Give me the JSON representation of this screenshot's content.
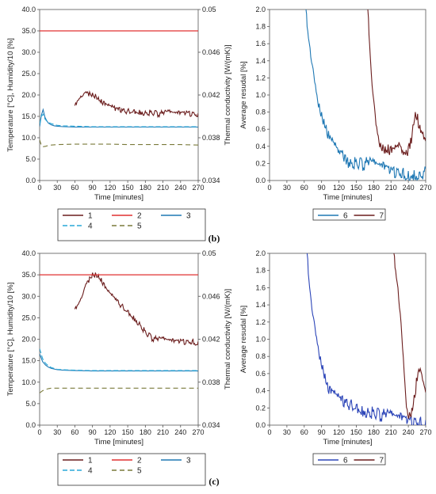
{
  "colors": {
    "s1": "#6b1d1d",
    "s2": "#e03030",
    "s3": "#1f78b4",
    "s4": "#29a8d8",
    "s5": "#7a7a3a",
    "s6_b": "#1f78b4",
    "s6_c": "#2c45b8",
    "s7": "#6b1d1d"
  },
  "panels": [
    {
      "label": "(b)"
    },
    {
      "label": "(c)"
    }
  ],
  "chart_data": [
    {
      "type": "line",
      "panel": "(b)",
      "xlabel": "Time [minutes]",
      "ylabel": "Temperature [°C], Humidity/10 [%]",
      "y2label": "Thermal conductivity [W/(mK)]",
      "xlim": [
        0,
        270
      ],
      "ylim": [
        0,
        40
      ],
      "y2lim": [
        0.034,
        0.05
      ],
      "xticks": [
        "0",
        "30",
        "60",
        "90",
        "120",
        "150",
        "180",
        "210",
        "240",
        "270"
      ],
      "yticks": [
        "0.0",
        "5.0",
        "10.0",
        "15.0",
        "20.0",
        "25.0",
        "30.0",
        "35.0",
        "40.0"
      ],
      "y2ticks": [
        "0.034",
        "0.038",
        "0.042",
        "0.046",
        "0.05"
      ],
      "legend": [
        "1",
        "2",
        "3",
        "4",
        "5"
      ],
      "series": [
        {
          "name": "1",
          "axis": "y2",
          "x": [
            60,
            65,
            70,
            75,
            80,
            85,
            90,
            95,
            100,
            105,
            110,
            115,
            120,
            130,
            140,
            150,
            160,
            170,
            180,
            190,
            200,
            210,
            220,
            230,
            240,
            250,
            260,
            270
          ],
          "values": [
            0.041,
            0.0415,
            0.0419,
            0.0421,
            0.0422,
            0.0423,
            0.0422,
            0.0421,
            0.0418,
            0.0416,
            0.0414,
            0.0411,
            0.041,
            0.0408,
            0.0407,
            0.0406,
            0.0406,
            0.0406,
            0.0405,
            0.0405,
            0.0404,
            0.0404,
            0.0405,
            0.0404,
            0.0404,
            0.0405,
            0.0404,
            0.0403
          ]
        },
        {
          "name": "2",
          "axis": "y",
          "x": [
            0,
            30,
            60,
            90,
            120,
            150,
            180,
            210,
            240,
            270
          ],
          "values": [
            35.0,
            35.0,
            35.0,
            35.0,
            35.0,
            35.0,
            35.0,
            35.0,
            35.0,
            35.0
          ]
        },
        {
          "name": "3",
          "axis": "y",
          "x": [
            0,
            3,
            6,
            9,
            12,
            15,
            20,
            25,
            30,
            40,
            60,
            90,
            120,
            150,
            180,
            210,
            240,
            270
          ],
          "values": [
            12.6,
            15.3,
            16.6,
            14.8,
            14.0,
            13.4,
            13.0,
            12.8,
            12.7,
            12.6,
            12.5,
            12.5,
            12.5,
            12.5,
            12.5,
            12.5,
            12.5,
            12.5
          ]
        },
        {
          "name": "4",
          "axis": "y",
          "x": [
            0,
            3,
            6,
            9,
            12,
            15,
            20,
            25,
            30,
            40,
            60,
            90,
            120,
            150,
            180,
            210,
            240,
            270
          ],
          "values": [
            13.2,
            15.0,
            15.5,
            14.4,
            13.9,
            13.6,
            13.3,
            13.1,
            12.9,
            12.8,
            12.7,
            12.6,
            12.6,
            12.6,
            12.6,
            12.6,
            12.6,
            12.6
          ]
        },
        {
          "name": "5",
          "axis": "y",
          "x": [
            0,
            3,
            6,
            10,
            15,
            20,
            30,
            60,
            90,
            120,
            150,
            180,
            210,
            240,
            270
          ],
          "values": [
            9.5,
            8.2,
            7.9,
            8.0,
            8.2,
            8.3,
            8.4,
            8.5,
            8.5,
            8.5,
            8.4,
            8.4,
            8.4,
            8.4,
            8.3
          ]
        }
      ]
    },
    {
      "type": "line",
      "panel": "(b)",
      "xlabel": "Time [minutes]",
      "ylabel": "Average resudal [%]",
      "xlim": [
        0,
        270
      ],
      "ylim": [
        0,
        2.0
      ],
      "xticks": [
        "0",
        "30",
        "60",
        "90",
        "120",
        "150",
        "180",
        "210",
        "240",
        "270"
      ],
      "yticks": [
        "0.0",
        "0.2",
        "0.4",
        "0.6",
        "0.8",
        "1.0",
        "1.2",
        "1.4",
        "1.6",
        "1.8",
        "2.0"
      ],
      "legend": [
        "6",
        "7"
      ],
      "series": [
        {
          "name": "6",
          "x": [
            63,
            66,
            70,
            74,
            78,
            82,
            86,
            90,
            94,
            98,
            102,
            106,
            110,
            115,
            120,
            125,
            130,
            135,
            140,
            150,
            160,
            170,
            180,
            190,
            200,
            210,
            220,
            230,
            240,
            250,
            260,
            270
          ],
          "values": [
            2.0,
            1.75,
            1.55,
            1.35,
            1.15,
            1.0,
            0.9,
            0.8,
            0.72,
            0.65,
            0.58,
            0.5,
            0.45,
            0.4,
            0.35,
            0.33,
            0.3,
            0.27,
            0.25,
            0.24,
            0.23,
            0.24,
            0.22,
            0.2,
            0.18,
            0.16,
            0.14,
            0.12,
            0.11,
            0.12,
            0.1,
            0.14
          ]
        },
        {
          "name": "7",
          "x": [
            170,
            173,
            176,
            180,
            184,
            188,
            192,
            196,
            200,
            205,
            210,
            215,
            220,
            225,
            230,
            235,
            240,
            244,
            248,
            252,
            256,
            260,
            264,
            268,
            270
          ],
          "values": [
            2.0,
            1.6,
            1.25,
            0.95,
            0.65,
            0.52,
            0.44,
            0.42,
            0.4,
            0.42,
            0.4,
            0.38,
            0.4,
            0.42,
            0.35,
            0.3,
            0.4,
            0.5,
            0.65,
            0.8,
            0.78,
            0.65,
            0.55,
            0.5,
            0.5
          ]
        }
      ]
    },
    {
      "type": "line",
      "panel": "(c)",
      "xlabel": "Time [minutes]",
      "ylabel": "Temperature [°C], Humidity/10 [%]",
      "y2label": "Thermal conductivity [W/(mK)]",
      "xlim": [
        0,
        270
      ],
      "ylim": [
        0,
        40
      ],
      "y2lim": [
        0.034,
        0.05
      ],
      "xticks": [
        "0",
        "30",
        "60",
        "90",
        "120",
        "150",
        "180",
        "210",
        "240",
        "270"
      ],
      "yticks": [
        "0.0",
        "5.0",
        "10.0",
        "15.0",
        "20.0",
        "25.0",
        "30.0",
        "35.0",
        "40.0"
      ],
      "y2ticks": [
        "0.034",
        "0.038",
        "0.042",
        "0.046",
        "0.05"
      ],
      "legend": [
        "1",
        "2",
        "3",
        "4",
        "5"
      ],
      "series": [
        {
          "name": "1",
          "axis": "y2",
          "x": [
            60,
            65,
            70,
            75,
            80,
            85,
            90,
            95,
            100,
            105,
            110,
            115,
            120,
            125,
            130,
            140,
            150,
            160,
            170,
            180,
            190,
            200,
            210,
            220,
            230,
            240,
            250,
            260,
            270
          ],
          "values": [
            0.0448,
            0.0452,
            0.0458,
            0.0465,
            0.0472,
            0.0478,
            0.0482,
            0.0482,
            0.048,
            0.0477,
            0.0472,
            0.0466,
            0.0463,
            0.046,
            0.0458,
            0.0452,
            0.0447,
            0.0442,
            0.0436,
            0.0428,
            0.0423,
            0.0421,
            0.0421,
            0.042,
            0.0419,
            0.042,
            0.0419,
            0.0419,
            0.0418
          ]
        },
        {
          "name": "2",
          "axis": "y",
          "x": [
            0,
            30,
            60,
            90,
            120,
            150,
            180,
            210,
            240,
            270
          ],
          "values": [
            35.0,
            35.0,
            35.0,
            35.0,
            35.0,
            35.0,
            35.0,
            35.0,
            35.0,
            35.0
          ]
        },
        {
          "name": "3",
          "axis": "y",
          "x": [
            0,
            5,
            10,
            15,
            20,
            30,
            40,
            60,
            90,
            120,
            150,
            180,
            210,
            240,
            270
          ],
          "values": [
            16.6,
            14.8,
            14.0,
            13.5,
            13.2,
            12.9,
            12.8,
            12.7,
            12.6,
            12.6,
            12.6,
            12.6,
            12.6,
            12.6,
            12.6
          ]
        },
        {
          "name": "4",
          "axis": "y",
          "x": [
            0,
            5,
            10,
            15,
            20,
            30,
            40,
            60,
            90,
            120,
            150,
            180,
            210,
            240,
            270
          ],
          "values": [
            17.8,
            15.5,
            14.4,
            13.8,
            13.4,
            13.0,
            12.9,
            12.8,
            12.7,
            12.7,
            12.7,
            12.7,
            12.7,
            12.7,
            12.7
          ]
        },
        {
          "name": "5",
          "axis": "y",
          "x": [
            0,
            5,
            10,
            15,
            20,
            30,
            60,
            90,
            120,
            150,
            180,
            210,
            240,
            270
          ],
          "values": [
            7.5,
            8.0,
            8.3,
            8.5,
            8.6,
            8.6,
            8.6,
            8.6,
            8.6,
            8.6,
            8.6,
            8.6,
            8.6,
            8.6
          ]
        }
      ]
    },
    {
      "type": "line",
      "panel": "(c)",
      "xlabel": "Time [minutes]",
      "ylabel": "Average resudal [%]",
      "xlim": [
        0,
        270
      ],
      "ylim": [
        0,
        2.0
      ],
      "xticks": [
        "0",
        "30",
        "60",
        "90",
        "120",
        "150",
        "180",
        "210",
        "240",
        "270"
      ],
      "yticks": [
        "0.0",
        "0.2",
        "0.4",
        "0.6",
        "0.8",
        "1.0",
        "1.2",
        "1.4",
        "1.6",
        "1.8",
        "2.0"
      ],
      "legend": [
        "6",
        "7"
      ],
      "series": [
        {
          "name": "6",
          "x": [
            65,
            68,
            72,
            76,
            80,
            84,
            88,
            92,
            96,
            100,
            105,
            110,
            115,
            120,
            130,
            140,
            150,
            160,
            170,
            180,
            190,
            200,
            210,
            220,
            230,
            240,
            250,
            260,
            270
          ],
          "values": [
            2.0,
            1.7,
            1.45,
            1.25,
            1.05,
            0.92,
            0.8,
            0.7,
            0.6,
            0.5,
            0.45,
            0.4,
            0.36,
            0.33,
            0.3,
            0.27,
            0.24,
            0.22,
            0.2,
            0.18,
            0.16,
            0.15,
            0.14,
            0.12,
            0.11,
            0.1,
            0.08,
            0.07,
            0.06
          ]
        },
        {
          "name": "7",
          "x": [
            215,
            218,
            222,
            226,
            230,
            234,
            238,
            242,
            246,
            250,
            254,
            258,
            262,
            266,
            270
          ],
          "values": [
            2.0,
            1.8,
            1.6,
            1.3,
            0.9,
            0.5,
            0.18,
            0.15,
            0.2,
            0.35,
            0.55,
            0.65,
            0.62,
            0.5,
            0.38
          ]
        }
      ]
    }
  ]
}
